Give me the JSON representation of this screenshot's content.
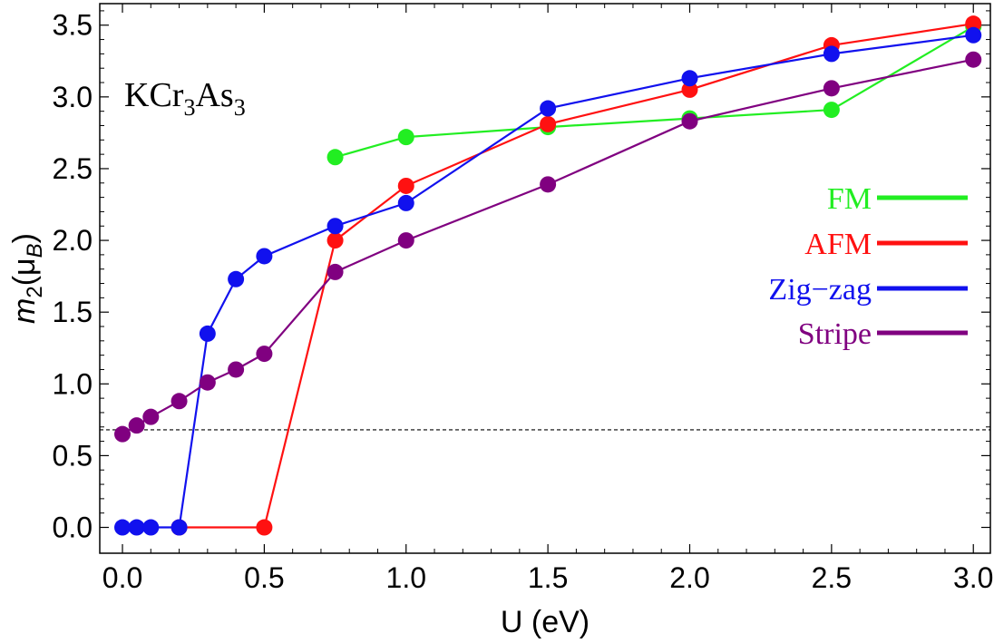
{
  "chart_data": {
    "type": "line",
    "title": "",
    "xlabel": "U (eV)",
    "ylabel": {
      "m": "m",
      "sub": "2",
      "open": "(μ",
      "unit_sub": "B",
      "close": ")"
    },
    "xlim": [
      -0.08,
      3.06
    ],
    "ylim": [
      -0.18,
      3.65
    ],
    "xticks": [
      0.0,
      0.5,
      1.0,
      1.5,
      2.0,
      2.5,
      3.0
    ],
    "xtick_labels": [
      "0.0",
      "0.5",
      "1.0",
      "1.5",
      "2.0",
      "2.5",
      "3.0"
    ],
    "yticks": [
      0.0,
      0.5,
      1.0,
      1.5,
      2.0,
      2.5,
      3.0,
      3.5
    ],
    "ytick_labels": [
      "0.0",
      "0.5",
      "1.0",
      "1.5",
      "2.0",
      "2.5",
      "3.0",
      "3.5"
    ],
    "reference_line": {
      "y": 0.68,
      "style": "dashed"
    },
    "annotation": {
      "parts": [
        "KCr",
        "3",
        "As",
        "3"
      ],
      "placement": "top-left"
    },
    "legend_placement": "right",
    "series": [
      {
        "name": "FM",
        "color": "#22ee22",
        "x": [
          0.75,
          1.0,
          1.5,
          2.0,
          2.5,
          3.0
        ],
        "y": [
          2.58,
          2.72,
          2.79,
          2.85,
          2.91,
          3.49
        ]
      },
      {
        "name": "AFM",
        "color": "#ff1111",
        "x": [
          0.2,
          0.5,
          0.75,
          1.0,
          1.5,
          2.0,
          2.5,
          3.0
        ],
        "y": [
          0.0,
          0.0,
          2.0,
          2.38,
          2.81,
          3.05,
          3.36,
          3.51
        ]
      },
      {
        "name": "Zig−zag",
        "color": "#1111ee",
        "x": [
          0.0,
          0.05,
          0.1,
          0.2,
          0.3,
          0.4,
          0.5,
          0.75,
          1.0,
          1.5,
          2.0,
          2.5,
          3.0
        ],
        "y": [
          0.0,
          0.0,
          0.0,
          0.0,
          1.35,
          1.73,
          1.89,
          2.1,
          2.26,
          2.92,
          3.13,
          3.3,
          3.43
        ]
      },
      {
        "name": "Stripe",
        "color": "#800080",
        "x": [
          0.0,
          0.05,
          0.1,
          0.2,
          0.3,
          0.4,
          0.5,
          0.75,
          1.0,
          1.5,
          2.0,
          2.5,
          3.0
        ],
        "y": [
          0.65,
          0.71,
          0.77,
          0.88,
          1.01,
          1.1,
          1.21,
          1.78,
          2.0,
          2.39,
          2.83,
          3.06,
          3.26
        ]
      }
    ]
  }
}
